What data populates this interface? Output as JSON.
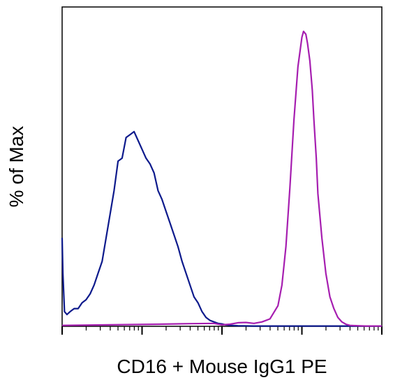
{
  "chart_data": {
    "type": "line",
    "title": "",
    "xlabel": "CD16 + Mouse IgG1 PE",
    "ylabel": "% of Max",
    "xscale": "log",
    "xdecades": 4,
    "xlim": [
      0,
      4
    ],
    "ylim": [
      0,
      100
    ],
    "grid": false,
    "legend": "none",
    "x_unit_note": "x in decades of log fluorescence (tick labels not shown)",
    "series": [
      {
        "color": "#0d1a8c",
        "x": [
          0.0,
          0.01,
          0.03,
          0.06,
          0.1,
          0.15,
          0.2,
          0.25,
          0.3,
          0.35,
          0.4,
          0.45,
          0.5,
          0.55,
          0.6,
          0.65,
          0.7,
          0.75,
          0.8,
          0.85,
          0.9,
          0.95,
          1.0,
          1.05,
          1.1,
          1.15,
          1.2,
          1.25,
          1.3,
          1.35,
          1.4,
          1.45,
          1.5,
          1.55,
          1.6,
          1.65,
          1.7,
          1.75,
          1.8,
          1.85,
          1.9,
          1.95,
          2.0,
          2.05,
          2.1,
          2.2,
          2.4,
          2.8,
          3.2,
          3.6,
          4.0
        ],
        "y": [
          30,
          18,
          5,
          4,
          5,
          6,
          6,
          8,
          9,
          11,
          14,
          18,
          22,
          30,
          38,
          46,
          56,
          57,
          64,
          65,
          66,
          63,
          60,
          57,
          55,
          52,
          46,
          43,
          39,
          35,
          31,
          27,
          22,
          18,
          14,
          10,
          8,
          5,
          3,
          2,
          1.5,
          1,
          0.8,
          0.5,
          0.3,
          0.2,
          0.1,
          0.1,
          0.1,
          0.1,
          0.1
        ]
      },
      {
        "color": "#a61eb0",
        "x": [
          0.0,
          0.6,
          1.2,
          1.6,
          1.9,
          2.0,
          2.1,
          2.2,
          2.3,
          2.4,
          2.5,
          2.6,
          2.7,
          2.75,
          2.8,
          2.85,
          2.9,
          2.95,
          3.0,
          3.02,
          3.05,
          3.07,
          3.1,
          3.13,
          3.15,
          3.18,
          3.2,
          3.25,
          3.3,
          3.35,
          3.4,
          3.45,
          3.5,
          3.55,
          3.6,
          3.7,
          3.8,
          4.0
        ],
        "y": [
          0.3,
          0.5,
          0.7,
          0.9,
          1.0,
          0.5,
          0.7,
          1.2,
          1.3,
          1.0,
          1.5,
          2.5,
          7,
          14,
          27,
          47,
          70,
          88,
          98,
          100,
          99,
          96,
          90,
          80,
          70,
          57,
          45,
          30,
          18,
          10,
          6,
          3,
          1.5,
          0.7,
          0.3,
          0.2,
          0.1,
          0.1
        ]
      }
    ]
  }
}
